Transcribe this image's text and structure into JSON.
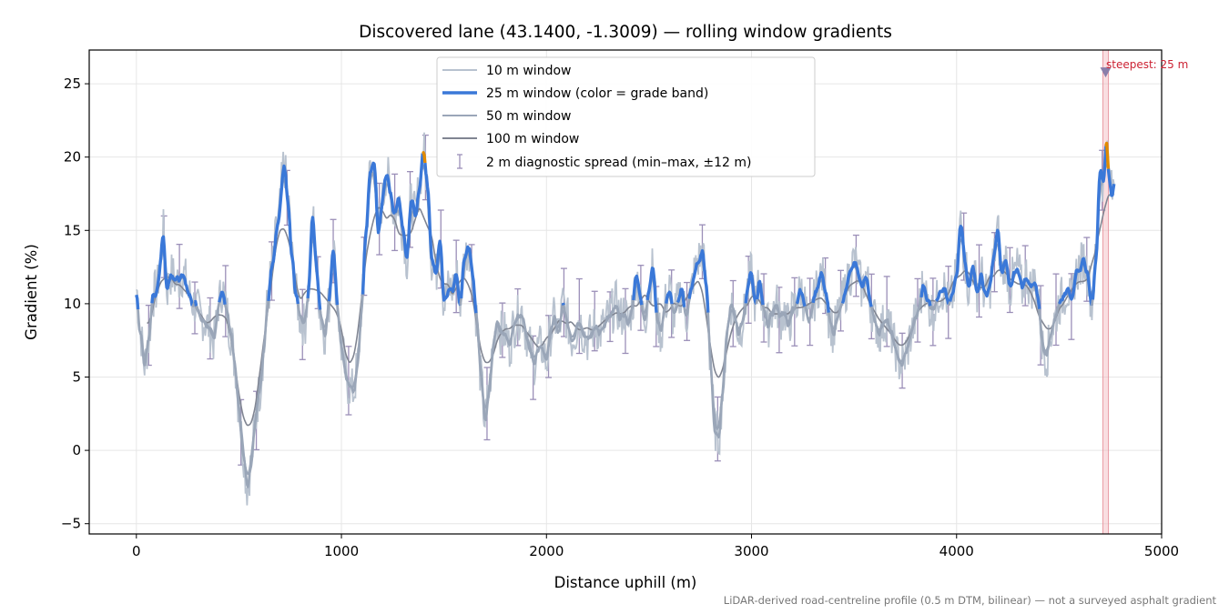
{
  "chart_data": {
    "type": "line",
    "title": "Discovered lane (43.1400, -1.3009) — rolling window gradients",
    "xlabel": "Distance uphill (m)",
    "ylabel": "Gradient (%)",
    "xlim": [
      -230,
      5000
    ],
    "ylim": [
      -5.7,
      27.3
    ],
    "x_ticks": [
      0,
      1000,
      2000,
      3000,
      4000,
      5000
    ],
    "x_tick_labels": [
      "0",
      "1000",
      "2000",
      "3000",
      "4000",
      "5000"
    ],
    "y_ticks": [
      -5,
      0,
      5,
      10,
      15,
      20,
      25
    ],
    "y_tick_labels": [
      "−5",
      "0",
      "5",
      "10",
      "15",
      "20",
      "25"
    ],
    "grid": true,
    "legend_position": "top-center",
    "footnote": "LiDAR-derived road-centreline profile (0.5 m DTM, bilinear) — not a surveyed asphalt gradient",
    "annotation": {
      "text": "steepest: 25 m",
      "x": 4727,
      "y": 25.8
    },
    "steepest_band": [
      4713,
      4741
    ],
    "colors": {
      "w10": "#b8c2cf",
      "w25": "#3a78d8",
      "w25_steep": "#e08a00",
      "w50": "#9aa6b8",
      "w100": "#808592",
      "errorbar": "#9b8fb8",
      "highlight": "#f2b5bc",
      "marker": "#8a7faa"
    },
    "profile_keypoints": [
      [
        0,
        11
      ],
      [
        20,
        8
      ],
      [
        40,
        5.8
      ],
      [
        60,
        7.5
      ],
      [
        80,
        10.5
      ],
      [
        100,
        11
      ],
      [
        120,
        13
      ],
      [
        130,
        15
      ],
      [
        150,
        11
      ],
      [
        170,
        12
      ],
      [
        200,
        11.5
      ],
      [
        230,
        12
      ],
      [
        260,
        10.5
      ],
      [
        280,
        10
      ],
      [
        320,
        9
      ],
      [
        350,
        8.5
      ],
      [
        380,
        7.5
      ],
      [
        400,
        10
      ],
      [
        420,
        11
      ],
      [
        440,
        9.5
      ],
      [
        460,
        8
      ],
      [
        480,
        6
      ],
      [
        500,
        3
      ],
      [
        520,
        0
      ],
      [
        540,
        -2.5
      ],
      [
        560,
        -1
      ],
      [
        580,
        2
      ],
      [
        600,
        4
      ],
      [
        620,
        6.5
      ],
      [
        640,
        10
      ],
      [
        660,
        12.5
      ],
      [
        690,
        15.5
      ],
      [
        720,
        19.5
      ],
      [
        740,
        17
      ],
      [
        760,
        13
      ],
      [
        780,
        10.5
      ],
      [
        800,
        9
      ],
      [
        820,
        8.5
      ],
      [
        840,
        11
      ],
      [
        860,
        16
      ],
      [
        880,
        12
      ],
      [
        900,
        9
      ],
      [
        920,
        8
      ],
      [
        940,
        10
      ],
      [
        960,
        14
      ],
      [
        980,
        10
      ],
      [
        1000,
        7
      ],
      [
        1030,
        4.5
      ],
      [
        1060,
        4
      ],
      [
        1080,
        6
      ],
      [
        1100,
        10
      ],
      [
        1120,
        15
      ],
      [
        1140,
        19
      ],
      [
        1160,
        19.5
      ],
      [
        1180,
        15
      ],
      [
        1200,
        17
      ],
      [
        1220,
        19
      ],
      [
        1240,
        17.5
      ],
      [
        1260,
        16
      ],
      [
        1280,
        17
      ],
      [
        1300,
        15
      ],
      [
        1320,
        13
      ],
      [
        1340,
        17
      ],
      [
        1360,
        16
      ],
      [
        1380,
        18
      ],
      [
        1400,
        20.5
      ],
      [
        1420,
        18
      ],
      [
        1440,
        13
      ],
      [
        1460,
        12
      ],
      [
        1480,
        14.5
      ],
      [
        1500,
        10
      ],
      [
        1520,
        11
      ],
      [
        1540,
        11
      ],
      [
        1560,
        12
      ],
      [
        1580,
        10
      ],
      [
        1600,
        13
      ],
      [
        1620,
        14
      ],
      [
        1640,
        12
      ],
      [
        1660,
        9
      ],
      [
        1680,
        5
      ],
      [
        1700,
        2
      ],
      [
        1720,
        4
      ],
      [
        1740,
        7
      ],
      [
        1760,
        9
      ],
      [
        1780,
        8
      ],
      [
        1800,
        8
      ],
      [
        1820,
        7
      ],
      [
        1840,
        8.5
      ],
      [
        1860,
        9
      ],
      [
        1880,
        9.5
      ],
      [
        1900,
        8
      ],
      [
        1920,
        7
      ],
      [
        1940,
        6
      ],
      [
        1960,
        7
      ],
      [
        1980,
        7
      ],
      [
        2000,
        6
      ],
      [
        2020,
        8
      ],
      [
        2040,
        9
      ],
      [
        2060,
        8
      ],
      [
        2080,
        10
      ],
      [
        2100,
        9
      ],
      [
        2120,
        7.5
      ],
      [
        2140,
        8
      ],
      [
        2160,
        9
      ],
      [
        2180,
        8
      ],
      [
        2200,
        7.5
      ],
      [
        2220,
        8
      ],
      [
        2240,
        8.5
      ],
      [
        2260,
        8
      ],
      [
        2280,
        8.5
      ],
      [
        2300,
        9
      ],
      [
        2320,
        9.5
      ],
      [
        2340,
        10
      ],
      [
        2360,
        9
      ],
      [
        2380,
        9.5
      ],
      [
        2400,
        8.5
      ],
      [
        2420,
        10
      ],
      [
        2440,
        12
      ],
      [
        2460,
        10
      ],
      [
        2480,
        9
      ],
      [
        2500,
        11
      ],
      [
        2520,
        12.5
      ],
      [
        2540,
        9
      ],
      [
        2560,
        8
      ],
      [
        2580,
        10
      ],
      [
        2600,
        11
      ],
      [
        2620,
        9
      ],
      [
        2640,
        10
      ],
      [
        2660,
        11
      ],
      [
        2680,
        9
      ],
      [
        2700,
        10.5
      ],
      [
        2720,
        12
      ],
      [
        2740,
        13
      ],
      [
        2760,
        13.5
      ],
      [
        2780,
        11
      ],
      [
        2800,
        6
      ],
      [
        2820,
        1.5
      ],
      [
        2840,
        1
      ],
      [
        2860,
        4
      ],
      [
        2880,
        8
      ],
      [
        2900,
        10
      ],
      [
        2920,
        9
      ],
      [
        2940,
        8
      ],
      [
        2960,
        9
      ],
      [
        2980,
        11
      ],
      [
        3000,
        12
      ],
      [
        3020,
        10
      ],
      [
        3040,
        11.5
      ],
      [
        3060,
        9.5
      ],
      [
        3080,
        8.5
      ],
      [
        3100,
        9.5
      ],
      [
        3120,
        10
      ],
      [
        3140,
        9
      ],
      [
        3160,
        9.5
      ],
      [
        3180,
        8.5
      ],
      [
        3200,
        9.5
      ],
      [
        3220,
        10
      ],
      [
        3240,
        11
      ],
      [
        3260,
        10
      ],
      [
        3280,
        8.5
      ],
      [
        3300,
        10
      ],
      [
        3320,
        11
      ],
      [
        3340,
        12
      ],
      [
        3360,
        11
      ],
      [
        3380,
        9
      ],
      [
        3400,
        8
      ],
      [
        3420,
        9
      ],
      [
        3440,
        10
      ],
      [
        3460,
        11
      ],
      [
        3480,
        12
      ],
      [
        3500,
        13
      ],
      [
        3520,
        12
      ],
      [
        3540,
        11
      ],
      [
        3560,
        12
      ],
      [
        3580,
        10
      ],
      [
        3600,
        9
      ],
      [
        3620,
        8
      ],
      [
        3640,
        8.5
      ],
      [
        3660,
        9
      ],
      [
        3680,
        8
      ],
      [
        3700,
        7
      ],
      [
        3720,
        6
      ],
      [
        3740,
        6
      ],
      [
        3760,
        7
      ],
      [
        3780,
        8
      ],
      [
        3800,
        9
      ],
      [
        3820,
        10
      ],
      [
        3840,
        11.5
      ],
      [
        3860,
        10
      ],
      [
        3880,
        9.5
      ],
      [
        3900,
        10
      ],
      [
        3920,
        11
      ],
      [
        3940,
        11
      ],
      [
        3960,
        10
      ],
      [
        3980,
        10.5
      ],
      [
        4000,
        12
      ],
      [
        4020,
        15.5
      ],
      [
        4040,
        13
      ],
      [
        4060,
        11
      ],
      [
        4080,
        12.5
      ],
      [
        4100,
        11
      ],
      [
        4120,
        12
      ],
      [
        4140,
        10.5
      ],
      [
        4160,
        11
      ],
      [
        4180,
        13
      ],
      [
        4200,
        15
      ],
      [
        4220,
        12
      ],
      [
        4240,
        13
      ],
      [
        4260,
        11
      ],
      [
        4280,
        12
      ],
      [
        4300,
        12.5
      ],
      [
        4320,
        11
      ],
      [
        4340,
        12
      ],
      [
        4360,
        11
      ],
      [
        4380,
        11.5
      ],
      [
        4400,
        10
      ],
      [
        4420,
        7
      ],
      [
        4440,
        6.5
      ],
      [
        4460,
        8
      ],
      [
        4480,
        9
      ],
      [
        4500,
        10
      ],
      [
        4520,
        10.5
      ],
      [
        4540,
        11
      ],
      [
        4560,
        10
      ],
      [
        4580,
        12
      ],
      [
        4600,
        12.5
      ],
      [
        4620,
        13
      ],
      [
        4640,
        12
      ],
      [
        4660,
        10
      ],
      [
        4680,
        13
      ],
      [
        4700,
        19
      ],
      [
        4720,
        18
      ],
      [
        4730,
        22
      ],
      [
        4740,
        19
      ],
      [
        4760,
        17.5
      ],
      [
        4770,
        18.5
      ]
    ]
  }
}
